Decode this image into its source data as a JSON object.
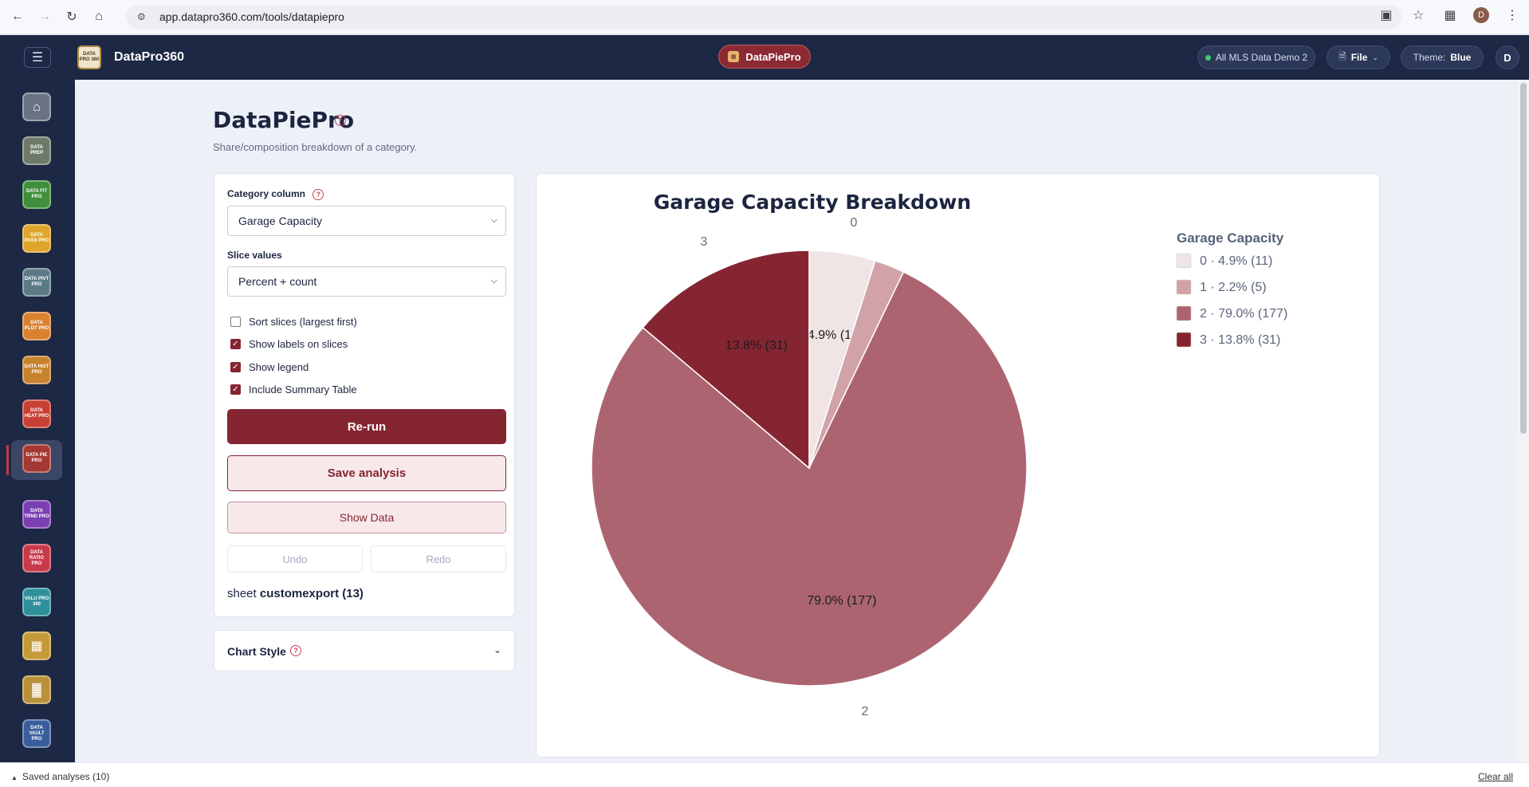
{
  "browser": {
    "url": "app.datapro360.com/tools/datapiepro",
    "profile_initial": "D"
  },
  "header": {
    "brand_logo_text": "DATA PRO 360",
    "brand_name": "DataPro360",
    "tool_pill": "DataPiePro",
    "dataset_chip": "All MLS Data Demo 2",
    "file_menu": "File",
    "theme_label": "Theme:",
    "theme_value": "Blue",
    "user_initial": "D"
  },
  "sidebar": {
    "items": [
      {
        "label": "",
        "name": "home",
        "color": "#6a7385"
      },
      {
        "label": "DATA PREP",
        "name": "dataprep",
        "color": "#6d7a6a"
      },
      {
        "label": "DATA FIT PRO",
        "name": "datafitpro",
        "color": "#3f8f3d"
      },
      {
        "label": "DATA PASS PRO",
        "name": "datapasspro",
        "color": "#e0a52b"
      },
      {
        "label": "DATA PIVT PRO",
        "name": "datapivtpro",
        "color": "#5c7a86"
      },
      {
        "label": "DATA PLOT PRO",
        "name": "dataplotpro",
        "color": "#d9812e"
      },
      {
        "label": "DATA HIST PRO",
        "name": "datahistpro",
        "color": "#c7822e"
      },
      {
        "label": "DATA HEAT PRO",
        "name": "dataheatpro",
        "color": "#c84034"
      },
      {
        "label": "DATA PIE PRO",
        "name": "datapiepro",
        "color": "#a43832"
      },
      {
        "label": "DATA TRND PRO",
        "name": "datatrndpro",
        "color": "#7a3fb0"
      },
      {
        "label": "DATA RATIO PRO",
        "name": "dataratiopro",
        "color": "#c73a4a"
      },
      {
        "label": "VALU PRO 360",
        "name": "valupro360",
        "color": "#2f8f9a"
      },
      {
        "label": "",
        "name": "grid-tool",
        "color": "#c59b3a"
      },
      {
        "label": "",
        "name": "report-tool",
        "color": "#b8913a"
      },
      {
        "label": "DATA VAULT PRO",
        "name": "datavaultpro",
        "color": "#3a5e9c"
      }
    ]
  },
  "page": {
    "title": "DataPiePro",
    "subtitle": "Share/composition breakdown of a category."
  },
  "controls": {
    "category_label": "Category column",
    "category_value": "Garage Capacity",
    "slice_label": "Slice values",
    "slice_value": "Percent + count",
    "checkboxes": [
      {
        "label": "Sort slices (largest first)",
        "checked": false
      },
      {
        "label": "Show labels on slices",
        "checked": true
      },
      {
        "label": "Show legend",
        "checked": true
      },
      {
        "label": "Include Summary Table",
        "checked": true
      }
    ],
    "rerun": "Re-run",
    "save": "Save analysis",
    "show_data": "Show Data",
    "undo": "Undo",
    "redo": "Redo",
    "sheet_prefix": "sheet",
    "sheet_name": "customexport (13)"
  },
  "chart_style": {
    "title": "Chart Style"
  },
  "chart_data": {
    "type": "pie",
    "title": "Garage Capacity Breakdown",
    "legend_title": "Garage Capacity",
    "legend_position": "right",
    "slices": [
      {
        "category": "0",
        "count": 11,
        "percent": 4.9,
        "color": "#f0e4e5",
        "label": "4.9% (11)",
        "legend": "0 · 4.9% (11)"
      },
      {
        "category": "1",
        "count": 5,
        "percent": 2.2,
        "color": "#d1a3a8",
        "label": "",
        "legend": "1 · 2.2% (5)"
      },
      {
        "category": "2",
        "count": 177,
        "percent": 79.0,
        "color": "#ac6570",
        "label": "79.0% (177)",
        "legend": "2 · 79.0% (177)"
      },
      {
        "category": "3",
        "count": 31,
        "percent": 13.8,
        "color": "#862532",
        "label": "13.8% (31)",
        "legend": "3 · 13.8% (31)"
      }
    ]
  },
  "footer": {
    "saved": "Saved analyses (10)",
    "clear": "Clear all"
  }
}
